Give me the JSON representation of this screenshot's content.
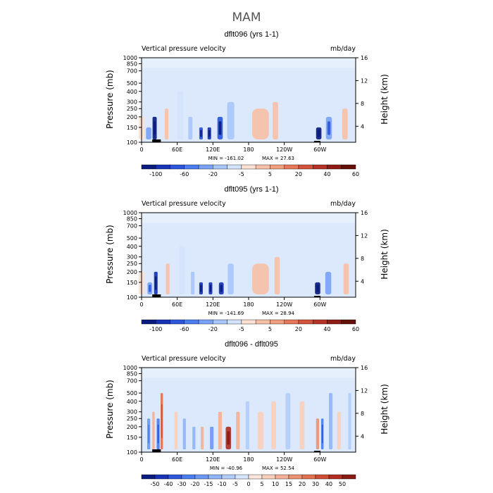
{
  "figure": {
    "title": "MAM"
  },
  "common": {
    "left_label": "Vertical pressure velocity",
    "right_label": "mb/day",
    "ylabel_left": "Pressure (mb)",
    "ylabel_right": "Height (km)",
    "pressure_ticks": [
      "100",
      "150",
      "200",
      "250",
      "300",
      "400",
      "500",
      "700",
      "850",
      "1000"
    ],
    "height_ticks": [
      "4",
      "8",
      "12",
      "16"
    ],
    "x_ticks": [
      "0",
      "60E",
      "120E",
      "180",
      "120W",
      "60W"
    ]
  },
  "chart_data": [
    {
      "type": "heatmap",
      "title": "dflt096 (yrs 1-1)",
      "min_label": "MIN = -161.02",
      "max_label": "MAX = 27.63",
      "colorbar_labels": [
        "-100",
        "-60",
        "-20",
        "-5",
        "5",
        "20",
        "40",
        "60"
      ],
      "colorbar_colors": [
        "#0b1b80",
        "#1733b8",
        "#2c57dd",
        "#4a7ef0",
        "#7aa3f7",
        "#a9c6fb",
        "#d4e3fc",
        "#fbe0d3",
        "#f6c0a7",
        "#f09f7e",
        "#e6775a",
        "#d3523b",
        "#b53227",
        "#8f1b14",
        "#631008"
      ],
      "fields": [
        {
          "lon": 0,
          "w": 10,
          "p_top": 200,
          "v": 8
        },
        {
          "lon": 12,
          "w": 9,
          "p_top": 150,
          "v": -55
        },
        {
          "lon": 22,
          "w": 7,
          "p_top": 200,
          "v": -120
        },
        {
          "lon": 42,
          "w": 6,
          "p_top": 250,
          "v": 15
        },
        {
          "lon": 65,
          "w": 10,
          "p_top": 400,
          "v": -15
        },
        {
          "lon": 82,
          "w": 7,
          "p_top": 200,
          "v": -35
        },
        {
          "lon": 100,
          "w": 6,
          "p_top": 150,
          "v": -90
        },
        {
          "lon": 114,
          "w": 6,
          "p_top": 150,
          "v": -110
        },
        {
          "lon": 132,
          "w": 9,
          "p_top": 200,
          "v": -95
        },
        {
          "lon": 150,
          "w": 12,
          "p_top": 300,
          "v": -30
        },
        {
          "lon": 200,
          "w": 28,
          "p_top": 250,
          "v": 12
        },
        {
          "lon": 225,
          "w": 9,
          "p_top": 300,
          "v": 22
        },
        {
          "lon": 298,
          "w": 9,
          "p_top": 150,
          "v": -125
        },
        {
          "lon": 315,
          "w": 10,
          "p_top": 200,
          "v": -60
        },
        {
          "lon": 342,
          "w": 9,
          "p_top": 250,
          "v": 14
        }
      ]
    },
    {
      "type": "heatmap",
      "title": "dflt095 (yrs 1-1)",
      "min_label": "MIN = -141.69",
      "max_label": "MAX = 28.94",
      "colorbar_labels": [
        "-100",
        "-60",
        "-20",
        "-5",
        "5",
        "20",
        "40",
        "60"
      ],
      "colorbar_colors": [
        "#0b1b80",
        "#1733b8",
        "#2c57dd",
        "#4a7ef0",
        "#7aa3f7",
        "#a9c6fb",
        "#d4e3fc",
        "#fbe0d3",
        "#f6c0a7",
        "#f09f7e",
        "#e6775a",
        "#d3523b",
        "#b53227",
        "#8f1b14",
        "#631008"
      ],
      "fields": [
        {
          "lon": 0,
          "w": 10,
          "p_top": 200,
          "v": 7
        },
        {
          "lon": 14,
          "w": 8,
          "p_top": 150,
          "v": -60
        },
        {
          "lon": 24,
          "w": 6,
          "p_top": 200,
          "v": -110
        },
        {
          "lon": 44,
          "w": 6,
          "p_top": 250,
          "v": 12
        },
        {
          "lon": 68,
          "w": 10,
          "p_top": 400,
          "v": -12
        },
        {
          "lon": 86,
          "w": 6,
          "p_top": 200,
          "v": -40
        },
        {
          "lon": 100,
          "w": 6,
          "p_top": 150,
          "v": -100
        },
        {
          "lon": 116,
          "w": 6,
          "p_top": 150,
          "v": -105
        },
        {
          "lon": 134,
          "w": 8,
          "p_top": 150,
          "v": -110
        },
        {
          "lon": 150,
          "w": 10,
          "p_top": 250,
          "v": -35
        },
        {
          "lon": 200,
          "w": 28,
          "p_top": 250,
          "v": 14
        },
        {
          "lon": 228,
          "w": 9,
          "p_top": 300,
          "v": 20
        },
        {
          "lon": 296,
          "w": 9,
          "p_top": 150,
          "v": -120
        },
        {
          "lon": 314,
          "w": 10,
          "p_top": 200,
          "v": -55
        },
        {
          "lon": 344,
          "w": 9,
          "p_top": 250,
          "v": 16
        }
      ]
    },
    {
      "type": "heatmap",
      "title": "dflt096 - dflt095",
      "min_label": "MIN = -40.96",
      "max_label": "MAX = 52.54",
      "colorbar_labels": [
        "-50",
        "-40",
        "-30",
        "-20",
        "-15",
        "-10",
        "-5",
        "0",
        "5",
        "10",
        "15",
        "20",
        "30",
        "40",
        "50"
      ],
      "colorbar_colors": [
        "#0b1b80",
        "#1733b8",
        "#2c57dd",
        "#4a7ef0",
        "#6b98f5",
        "#8fb4f9",
        "#b3cdfb",
        "#d6e5fd",
        "#fbe6dc",
        "#f8cfbb",
        "#f3b096",
        "#ec9272",
        "#e2714f",
        "#d04e34",
        "#b22e22",
        "#8a1a12"
      ],
      "fields": [
        {
          "lon": 12,
          "w": 5,
          "p_top": 250,
          "v": -25
        },
        {
          "lon": 20,
          "w": 4,
          "p_top": 300,
          "v": 18
        },
        {
          "lon": 28,
          "w": 5,
          "p_top": 250,
          "v": -30
        },
        {
          "lon": 34,
          "w": 4,
          "p_top": 500,
          "v": 30
        },
        {
          "lon": 58,
          "w": 5,
          "p_top": 300,
          "v": 12
        },
        {
          "lon": 72,
          "w": 5,
          "p_top": 250,
          "v": -20
        },
        {
          "lon": 88,
          "w": 5,
          "p_top": 200,
          "v": -18
        },
        {
          "lon": 102,
          "w": 5,
          "p_top": 200,
          "v": 16
        },
        {
          "lon": 118,
          "w": 6,
          "p_top": 200,
          "v": -22
        },
        {
          "lon": 132,
          "w": 6,
          "p_top": 300,
          "v": 14
        },
        {
          "lon": 146,
          "w": 9,
          "p_top": 200,
          "v": 42
        },
        {
          "lon": 162,
          "w": 6,
          "p_top": 300,
          "v": 20
        },
        {
          "lon": 178,
          "w": 6,
          "p_top": 400,
          "v": -10
        },
        {
          "lon": 200,
          "w": 10,
          "p_top": 300,
          "v": 8
        },
        {
          "lon": 222,
          "w": 8,
          "p_top": 400,
          "v": 12
        },
        {
          "lon": 246,
          "w": 8,
          "p_top": 500,
          "v": -8
        },
        {
          "lon": 270,
          "w": 8,
          "p_top": 400,
          "v": 10
        },
        {
          "lon": 296,
          "w": 5,
          "p_top": 250,
          "v": 24
        },
        {
          "lon": 304,
          "w": 4,
          "p_top": 250,
          "v": -28
        },
        {
          "lon": 318,
          "w": 6,
          "p_top": 500,
          "v": -20
        },
        {
          "lon": 332,
          "w": 6,
          "p_top": 300,
          "v": 12
        },
        {
          "lon": 350,
          "w": 5,
          "p_top": 500,
          "v": -12
        }
      ]
    }
  ]
}
